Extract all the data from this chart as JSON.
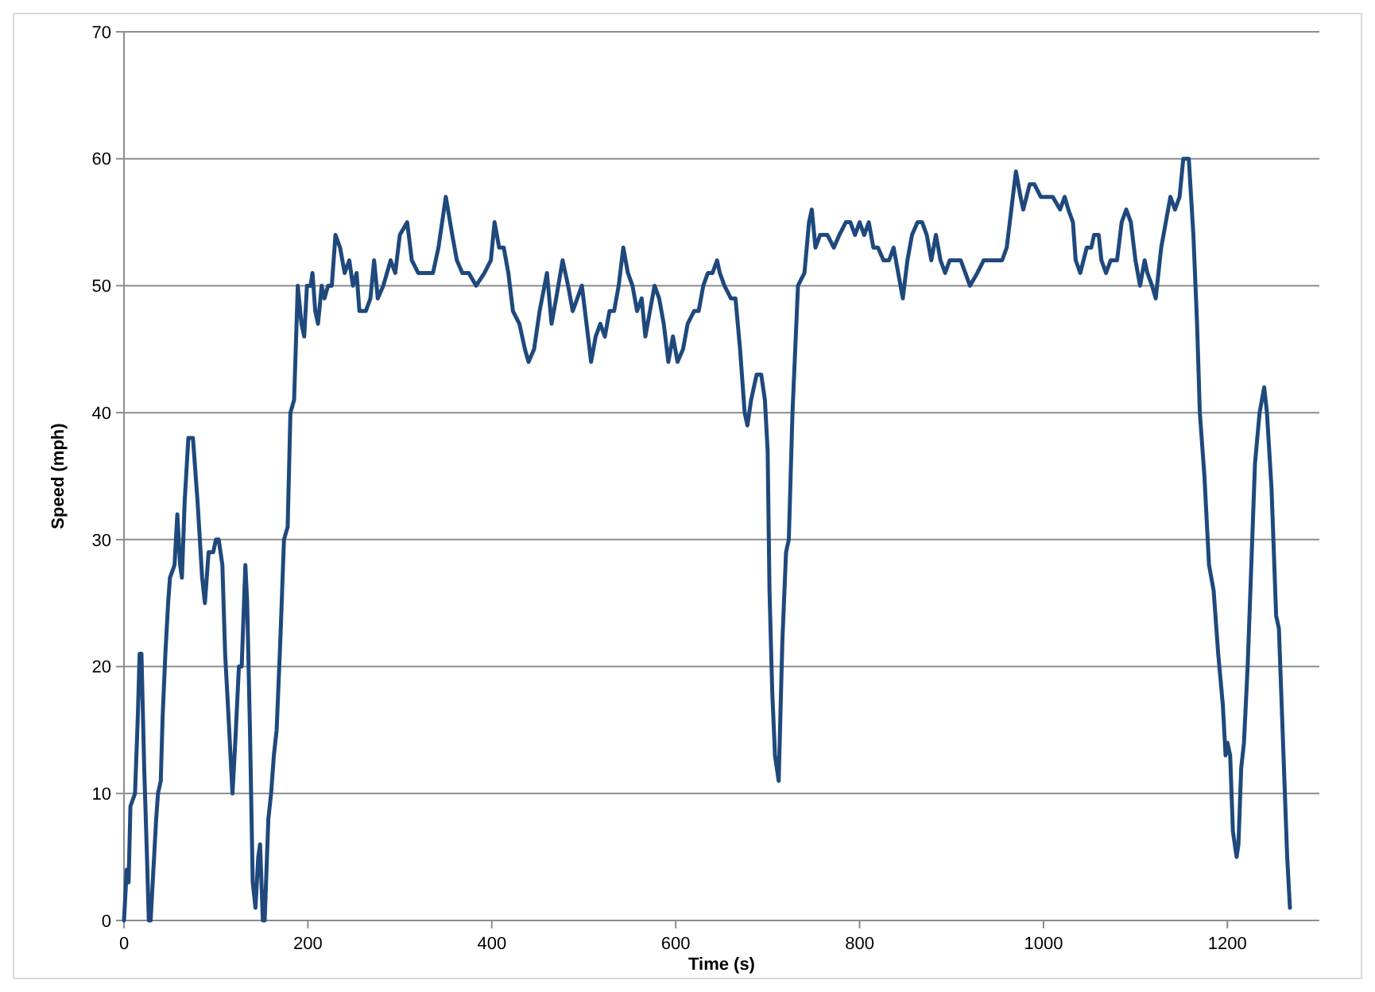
{
  "chart_data": {
    "type": "line",
    "xlabel": "Time (s)",
    "ylabel": "Speed (mph)",
    "xlim": [
      0,
      1300
    ],
    "ylim": [
      0,
      70
    ],
    "xticks": [
      0,
      200,
      400,
      600,
      800,
      1000,
      1200
    ],
    "yticks": [
      0,
      10,
      20,
      30,
      40,
      50,
      60,
      70
    ],
    "grid": "y",
    "marker": "none",
    "line_style": "solid",
    "series": [
      {
        "color": "#1f497d",
        "x": [
          0,
          3,
          5,
          7,
          12,
          15,
          17,
          19,
          22,
          25,
          27,
          29,
          32,
          35,
          37,
          40,
          42,
          45,
          48,
          50,
          55,
          58,
          61,
          63,
          66,
          70,
          75,
          80,
          85,
          88,
          92,
          97,
          100,
          103,
          107,
          110,
          113,
          118,
          121,
          125,
          128,
          132,
          134,
          137,
          140,
          143,
          146,
          148,
          151,
          153,
          157,
          160,
          163,
          166,
          170,
          174,
          178,
          181,
          185,
          189,
          193,
          196,
          199,
          203,
          205,
          208,
          211,
          215,
          218,
          222,
          226,
          230,
          235,
          240,
          245,
          249,
          253,
          256,
          263,
          268,
          272,
          276,
          282,
          290,
          295,
          300,
          308,
          313,
          320,
          328,
          336,
          342,
          350,
          357,
          362,
          368,
          375,
          383,
          392,
          399,
          403,
          408,
          413,
          418,
          423,
          430,
          436,
          440,
          446,
          452,
          460,
          465,
          470,
          477,
          483,
          488,
          493,
          498,
          503,
          508,
          513,
          518,
          523,
          528,
          533,
          538,
          543,
          548,
          553,
          558,
          563,
          567,
          572,
          577,
          582,
          587,
          592,
          597,
          602,
          608,
          613,
          620,
          625,
          630,
          635,
          640,
          645,
          648,
          653,
          660,
          665,
          670,
          675,
          678,
          682,
          688,
          693,
          697,
          700,
          702,
          705,
          708,
          712,
          716,
          720,
          723,
          727,
          733,
          740,
          745,
          748,
          752,
          757,
          765,
          772,
          778,
          785,
          790,
          795,
          800,
          805,
          810,
          815,
          820,
          826,
          832,
          837,
          842,
          847,
          852,
          857,
          863,
          868,
          873,
          878,
          883,
          888,
          893,
          898,
          903,
          910,
          915,
          920,
          928,
          935,
          945,
          955,
          960,
          965,
          970,
          975,
          978,
          985,
          990,
          997,
          1003,
          1010,
          1018,
          1023,
          1027,
          1032,
          1035,
          1040,
          1047,
          1052,
          1055,
          1060,
          1063,
          1068,
          1073,
          1080,
          1085,
          1090,
          1095,
          1100,
          1105,
          1110,
          1113,
          1118,
          1122,
          1128,
          1133,
          1138,
          1143,
          1148,
          1152,
          1158,
          1163,
          1167,
          1170,
          1175,
          1180,
          1185,
          1190,
          1195,
          1198,
          1200,
          1203,
          1206,
          1210,
          1212,
          1215,
          1218,
          1222,
          1226,
          1230,
          1235,
          1240,
          1243,
          1248,
          1253,
          1256,
          1260,
          1265,
          1268
        ],
        "values": [
          0,
          4,
          3,
          9,
          10,
          16,
          21,
          21,
          12,
          5,
          0,
          0,
          4,
          8,
          10,
          11,
          16,
          21,
          25,
          27,
          28,
          32,
          28,
          27,
          33,
          38,
          38,
          33,
          27,
          25,
          29,
          29,
          30,
          30,
          28,
          21,
          17,
          10,
          14,
          20,
          20,
          28,
          25,
          15,
          3,
          1,
          5,
          6,
          0,
          0,
          8,
          10,
          13,
          15,
          22,
          30,
          31,
          40,
          41,
          50,
          47,
          46,
          50,
          50,
          51,
          48,
          47,
          50,
          49,
          50,
          50,
          54,
          53,
          51,
          52,
          50,
          51,
          48,
          48,
          49,
          52,
          49,
          50,
          52,
          51,
          54,
          55,
          52,
          51,
          51,
          51,
          53,
          57,
          54,
          52,
          51,
          51,
          50,
          51,
          52,
          55,
          53,
          53,
          51,
          48,
          47,
          45,
          44,
          45,
          48,
          51,
          47,
          49,
          52,
          50,
          48,
          49,
          50,
          47,
          44,
          46,
          47,
          46,
          48,
          48,
          50,
          53,
          51,
          50,
          48,
          49,
          46,
          48,
          50,
          49,
          47,
          44,
          46,
          44,
          45,
          47,
          48,
          48,
          50,
          51,
          51,
          52,
          51,
          50,
          49,
          49,
          45,
          40,
          39,
          41,
          43,
          43,
          41,
          37,
          26,
          18,
          13,
          11,
          22,
          29,
          30,
          40,
          50,
          51,
          55,
          56,
          53,
          54,
          54,
          53,
          54,
          55,
          55,
          54,
          55,
          54,
          55,
          53,
          53,
          52,
          52,
          53,
          51,
          49,
          52,
          54,
          55,
          55,
          54,
          52,
          54,
          52,
          51,
          52,
          52,
          52,
          51,
          50,
          51,
          52,
          52,
          52,
          53,
          56,
          59,
          57,
          56,
          58,
          58,
          57,
          57,
          57,
          56,
          57,
          56,
          55,
          52,
          51,
          53,
          53,
          54,
          54,
          52,
          51,
          52,
          52,
          55,
          56,
          55,
          52,
          50,
          52,
          51,
          50,
          49,
          53,
          55,
          57,
          56,
          57,
          60,
          60,
          54,
          47,
          40,
          35,
          28,
          26,
          21,
          17,
          13,
          14,
          13,
          7,
          5,
          6,
          12,
          14,
          20,
          28,
          36,
          40,
          42,
          40,
          34,
          24,
          23,
          15,
          5,
          1
        ]
      }
    ]
  }
}
